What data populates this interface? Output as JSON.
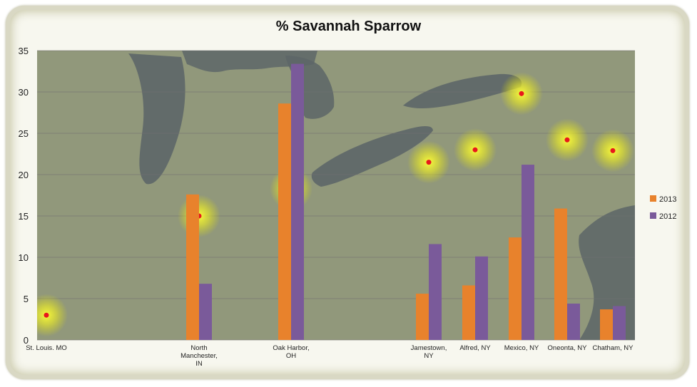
{
  "chart_data": {
    "type": "bar",
    "title": "% Savannah Sparrow",
    "xlabel": "",
    "ylabel": "",
    "ylim": [
      0,
      35
    ],
    "yticks": [
      0,
      5,
      10,
      15,
      20,
      25,
      30,
      35
    ],
    "grid": true,
    "legend_position": "right",
    "categories": [
      "St. Louis. MO",
      "North Manchester, IN",
      "Oak Harbor, OH",
      "Jamestown, NY",
      "Alfred, NY",
      "Mexico, NY",
      "Oneonta, NY",
      "Chatham, NY"
    ],
    "category_lines": [
      [
        "St. Louis. MO"
      ],
      [
        "North",
        "Manchester,",
        "IN"
      ],
      [
        "Oak Harbor,",
        "OH"
      ],
      [
        "Jamestown,",
        "NY"
      ],
      [
        "Alfred, NY"
      ],
      [
        "Mexico, NY"
      ],
      [
        "Oneonta, NY"
      ],
      [
        "Chatham, NY"
      ]
    ],
    "series": [
      {
        "name": "2013",
        "color": "#e8822c",
        "values": [
          0,
          17.6,
          28.6,
          5.6,
          6.6,
          12.4,
          15.9,
          3.7
        ]
      },
      {
        "name": "2012",
        "color": "#7a5a9a",
        "values": [
          0,
          6.8,
          33.4,
          11.6,
          10.1,
          21.2,
          4.4,
          4.1
        ]
      }
    ],
    "location_markers": [
      3,
      15,
      18.3,
      21.5,
      23,
      29.8,
      24.2,
      22.9
    ]
  }
}
